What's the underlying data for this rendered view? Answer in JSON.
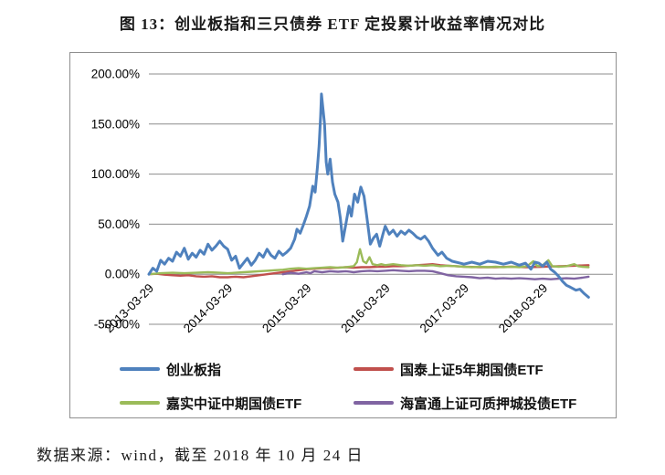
{
  "title": "图 13：创业板指和三只债券 ETF 定投累计收益率情况对比",
  "footer": {
    "source_text": "数据来源：wind，截至 2018 年 10 月 24 日"
  },
  "chart_data": {
    "type": "line",
    "title": "图 13：创业板指和三只债券 ETF 定投累计收益率情况对比",
    "grid": true,
    "legend_position": "bottom",
    "y_axis": {
      "unit": "percent",
      "ylim": [
        -50,
        200
      ],
      "tick_values": [
        200,
        150,
        100,
        50,
        0,
        -50
      ],
      "tick_labels": [
        "200.00%",
        "150.00%",
        "100.00%",
        "50.00%",
        "0.00%",
        "-50.00%"
      ]
    },
    "x_axis": {
      "unit": "years since 2013-03-29",
      "xlim": [
        0,
        5.89
      ],
      "tick_positions": [
        0,
        1,
        2,
        3,
        4,
        5
      ],
      "tick_labels": [
        "2013-03-29",
        "2014-03-29",
        "2015-03-29",
        "2016-03-29",
        "2017-03-29",
        "2018-03-29"
      ]
    },
    "series": [
      {
        "name": "创业板指",
        "color": "#4F81BD",
        "points": [
          [
            0,
            0
          ],
          [
            0.05,
            6
          ],
          [
            0.1,
            3
          ],
          [
            0.15,
            14
          ],
          [
            0.2,
            10
          ],
          [
            0.25,
            16
          ],
          [
            0.3,
            13
          ],
          [
            0.35,
            22
          ],
          [
            0.4,
            18
          ],
          [
            0.45,
            26
          ],
          [
            0.5,
            15
          ],
          [
            0.55,
            21
          ],
          [
            0.6,
            17
          ],
          [
            0.65,
            24
          ],
          [
            0.7,
            20
          ],
          [
            0.75,
            30
          ],
          [
            0.8,
            24
          ],
          [
            0.85,
            28
          ],
          [
            0.9,
            33
          ],
          [
            0.95,
            28
          ],
          [
            1.0,
            25
          ],
          [
            1.05,
            14
          ],
          [
            1.1,
            18
          ],
          [
            1.15,
            6
          ],
          [
            1.2,
            11
          ],
          [
            1.25,
            16
          ],
          [
            1.3,
            9
          ],
          [
            1.35,
            14
          ],
          [
            1.4,
            21
          ],
          [
            1.45,
            17
          ],
          [
            1.5,
            25
          ],
          [
            1.55,
            19
          ],
          [
            1.6,
            16
          ],
          [
            1.65,
            23
          ],
          [
            1.7,
            19
          ],
          [
            1.75,
            22
          ],
          [
            1.8,
            26
          ],
          [
            1.85,
            35
          ],
          [
            1.88,
            45
          ],
          [
            1.92,
            41
          ],
          [
            1.96,
            49
          ],
          [
            2.0,
            58
          ],
          [
            2.04,
            68
          ],
          [
            2.08,
            88
          ],
          [
            2.11,
            82
          ],
          [
            2.14,
            108
          ],
          [
            2.16,
            128
          ],
          [
            2.18,
            158
          ],
          [
            2.19,
            180
          ],
          [
            2.21,
            165
          ],
          [
            2.23,
            150
          ],
          [
            2.25,
            112
          ],
          [
            2.27,
            100
          ],
          [
            2.3,
            115
          ],
          [
            2.33,
            92
          ],
          [
            2.36,
            80
          ],
          [
            2.4,
            72
          ],
          [
            2.43,
            56
          ],
          [
            2.46,
            33
          ],
          [
            2.5,
            50
          ],
          [
            2.54,
            68
          ],
          [
            2.57,
            58
          ],
          [
            2.61,
            80
          ],
          [
            2.65,
            72
          ],
          [
            2.69,
            87
          ],
          [
            2.73,
            78
          ],
          [
            2.77,
            55
          ],
          [
            2.81,
            30
          ],
          [
            2.85,
            36
          ],
          [
            2.89,
            40
          ],
          [
            2.93,
            28
          ],
          [
            2.97,
            40
          ],
          [
            3.0,
            48
          ],
          [
            3.05,
            40
          ],
          [
            3.1,
            44
          ],
          [
            3.15,
            38
          ],
          [
            3.2,
            43
          ],
          [
            3.25,
            40
          ],
          [
            3.3,
            44
          ],
          [
            3.35,
            41
          ],
          [
            3.4,
            37
          ],
          [
            3.45,
            35
          ],
          [
            3.5,
            38
          ],
          [
            3.55,
            33
          ],
          [
            3.6,
            26
          ],
          [
            3.67,
            19
          ],
          [
            3.72,
            22
          ],
          [
            3.78,
            16
          ],
          [
            3.85,
            13
          ],
          [
            3.95,
            11
          ],
          [
            4.0,
            10
          ],
          [
            4.1,
            12
          ],
          [
            4.2,
            10
          ],
          [
            4.3,
            13
          ],
          [
            4.4,
            12
          ],
          [
            4.5,
            10
          ],
          [
            4.6,
            12
          ],
          [
            4.7,
            9
          ],
          [
            4.78,
            11
          ],
          [
            4.85,
            5
          ],
          [
            4.9,
            12
          ],
          [
            4.95,
            11
          ],
          [
            5.0,
            8
          ],
          [
            5.05,
            12
          ],
          [
            5.1,
            5
          ],
          [
            5.15,
            2
          ],
          [
            5.2,
            -2
          ],
          [
            5.25,
            -7
          ],
          [
            5.3,
            -11
          ],
          [
            5.35,
            -13
          ],
          [
            5.42,
            -16
          ],
          [
            5.47,
            -15
          ],
          [
            5.52,
            -19
          ],
          [
            5.58,
            -23
          ]
        ]
      },
      {
        "name": "国泰上证5年期国债ETF",
        "color": "#C0504D",
        "points": [
          [
            0,
            0
          ],
          [
            0.1,
            0.5
          ],
          [
            0.2,
            -0.5
          ],
          [
            0.3,
            -1
          ],
          [
            0.4,
            -1.5
          ],
          [
            0.5,
            -1
          ],
          [
            0.6,
            -2
          ],
          [
            0.7,
            -2.5
          ],
          [
            0.8,
            -2
          ],
          [
            0.9,
            -3
          ],
          [
            1.0,
            -3
          ],
          [
            1.1,
            -2.5
          ],
          [
            1.2,
            -3
          ],
          [
            1.3,
            -2
          ],
          [
            1.4,
            -1
          ],
          [
            1.5,
            0
          ],
          [
            1.6,
            1
          ],
          [
            1.7,
            2
          ],
          [
            1.8,
            3
          ],
          [
            1.9,
            4
          ],
          [
            2.0,
            5
          ],
          [
            2.1,
            5.5
          ],
          [
            2.2,
            6
          ],
          [
            2.3,
            6
          ],
          [
            2.4,
            6.5
          ],
          [
            2.5,
            7
          ],
          [
            2.6,
            6.5
          ],
          [
            2.7,
            7
          ],
          [
            2.8,
            7
          ],
          [
            2.9,
            7.5
          ],
          [
            3.0,
            7.5
          ],
          [
            3.1,
            8
          ],
          [
            3.2,
            8
          ],
          [
            3.3,
            8.5
          ],
          [
            3.4,
            9
          ],
          [
            3.5,
            9.5
          ],
          [
            3.6,
            10
          ],
          [
            3.7,
            9
          ],
          [
            3.8,
            8.5
          ],
          [
            3.9,
            8
          ],
          [
            4.0,
            7.5
          ],
          [
            4.2,
            7
          ],
          [
            4.4,
            7
          ],
          [
            4.6,
            7.5
          ],
          [
            4.8,
            7
          ],
          [
            5.0,
            7.5
          ],
          [
            5.2,
            8
          ],
          [
            5.4,
            8.5
          ],
          [
            5.58,
            9
          ]
        ]
      },
      {
        "name": "嘉实中证中期国债ETF",
        "color": "#9BBB59",
        "points": [
          [
            0,
            0
          ],
          [
            0.15,
            1
          ],
          [
            0.3,
            1.5
          ],
          [
            0.45,
            1
          ],
          [
            0.6,
            1.5
          ],
          [
            0.75,
            2
          ],
          [
            0.9,
            1.5
          ],
          [
            1.0,
            1
          ],
          [
            1.1,
            1.5
          ],
          [
            1.2,
            2
          ],
          [
            1.3,
            2.5
          ],
          [
            1.4,
            3
          ],
          [
            1.5,
            3.5
          ],
          [
            1.6,
            4
          ],
          [
            1.7,
            4.5
          ],
          [
            1.8,
            5.5
          ],
          [
            1.9,
            6
          ],
          [
            2.0,
            5.5
          ],
          [
            2.1,
            6
          ],
          [
            2.2,
            6.5
          ],
          [
            2.3,
            7
          ],
          [
            2.4,
            6.5
          ],
          [
            2.5,
            7
          ],
          [
            2.55,
            7.5
          ],
          [
            2.6,
            8
          ],
          [
            2.64,
            12
          ],
          [
            2.68,
            25
          ],
          [
            2.72,
            13
          ],
          [
            2.76,
            11
          ],
          [
            2.8,
            17
          ],
          [
            2.84,
            10
          ],
          [
            2.9,
            9
          ],
          [
            2.95,
            10
          ],
          [
            3.0,
            9
          ],
          [
            3.1,
            10
          ],
          [
            3.2,
            9
          ],
          [
            3.3,
            8.5
          ],
          [
            3.4,
            9
          ],
          [
            3.5,
            8.5
          ],
          [
            3.6,
            9
          ],
          [
            3.7,
            8
          ],
          [
            3.8,
            8.5
          ],
          [
            3.9,
            8
          ],
          [
            4.0,
            7.5
          ],
          [
            4.1,
            7
          ],
          [
            4.2,
            7.5
          ],
          [
            4.3,
            7
          ],
          [
            4.4,
            7.5
          ],
          [
            4.5,
            7
          ],
          [
            4.6,
            7.5
          ],
          [
            4.7,
            7
          ],
          [
            4.8,
            8
          ],
          [
            4.88,
            13
          ],
          [
            4.93,
            8
          ],
          [
            5.0,
            9
          ],
          [
            5.07,
            14
          ],
          [
            5.12,
            8
          ],
          [
            5.2,
            7.5
          ],
          [
            5.3,
            8
          ],
          [
            5.4,
            10
          ],
          [
            5.45,
            8
          ],
          [
            5.5,
            7.5
          ],
          [
            5.58,
            7
          ]
        ]
      },
      {
        "name": "海富通上证可质押城投债ETF",
        "color": "#8064A2",
        "points": [
          [
            1.7,
            0
          ],
          [
            1.8,
            1.5
          ],
          [
            1.9,
            0.5
          ],
          [
            2.0,
            2
          ],
          [
            2.05,
            1
          ],
          [
            2.1,
            3
          ],
          [
            2.2,
            2
          ],
          [
            2.3,
            3
          ],
          [
            2.4,
            2.5
          ],
          [
            2.5,
            3
          ],
          [
            2.6,
            2
          ],
          [
            2.7,
            3
          ],
          [
            2.8,
            3.5
          ],
          [
            2.9,
            3
          ],
          [
            3.0,
            3.5
          ],
          [
            3.1,
            4
          ],
          [
            3.2,
            3.5
          ],
          [
            3.3,
            3
          ],
          [
            3.4,
            3.5
          ],
          [
            3.5,
            3.5
          ],
          [
            3.6,
            3
          ],
          [
            3.7,
            1
          ],
          [
            3.8,
            -1
          ],
          [
            3.9,
            -2
          ],
          [
            4.0,
            -2.5
          ],
          [
            4.1,
            -3
          ],
          [
            4.2,
            -4
          ],
          [
            4.3,
            -3.5
          ],
          [
            4.4,
            -4.5
          ],
          [
            4.5,
            -4
          ],
          [
            4.6,
            -4.5
          ],
          [
            4.7,
            -4
          ],
          [
            4.8,
            -4.5
          ],
          [
            4.9,
            -5
          ],
          [
            5.0,
            -4.5
          ],
          [
            5.1,
            -5
          ],
          [
            5.2,
            -4.5
          ],
          [
            5.3,
            -4
          ],
          [
            5.4,
            -4.5
          ],
          [
            5.5,
            -3.5
          ],
          [
            5.58,
            -2.5
          ]
        ]
      }
    ]
  }
}
